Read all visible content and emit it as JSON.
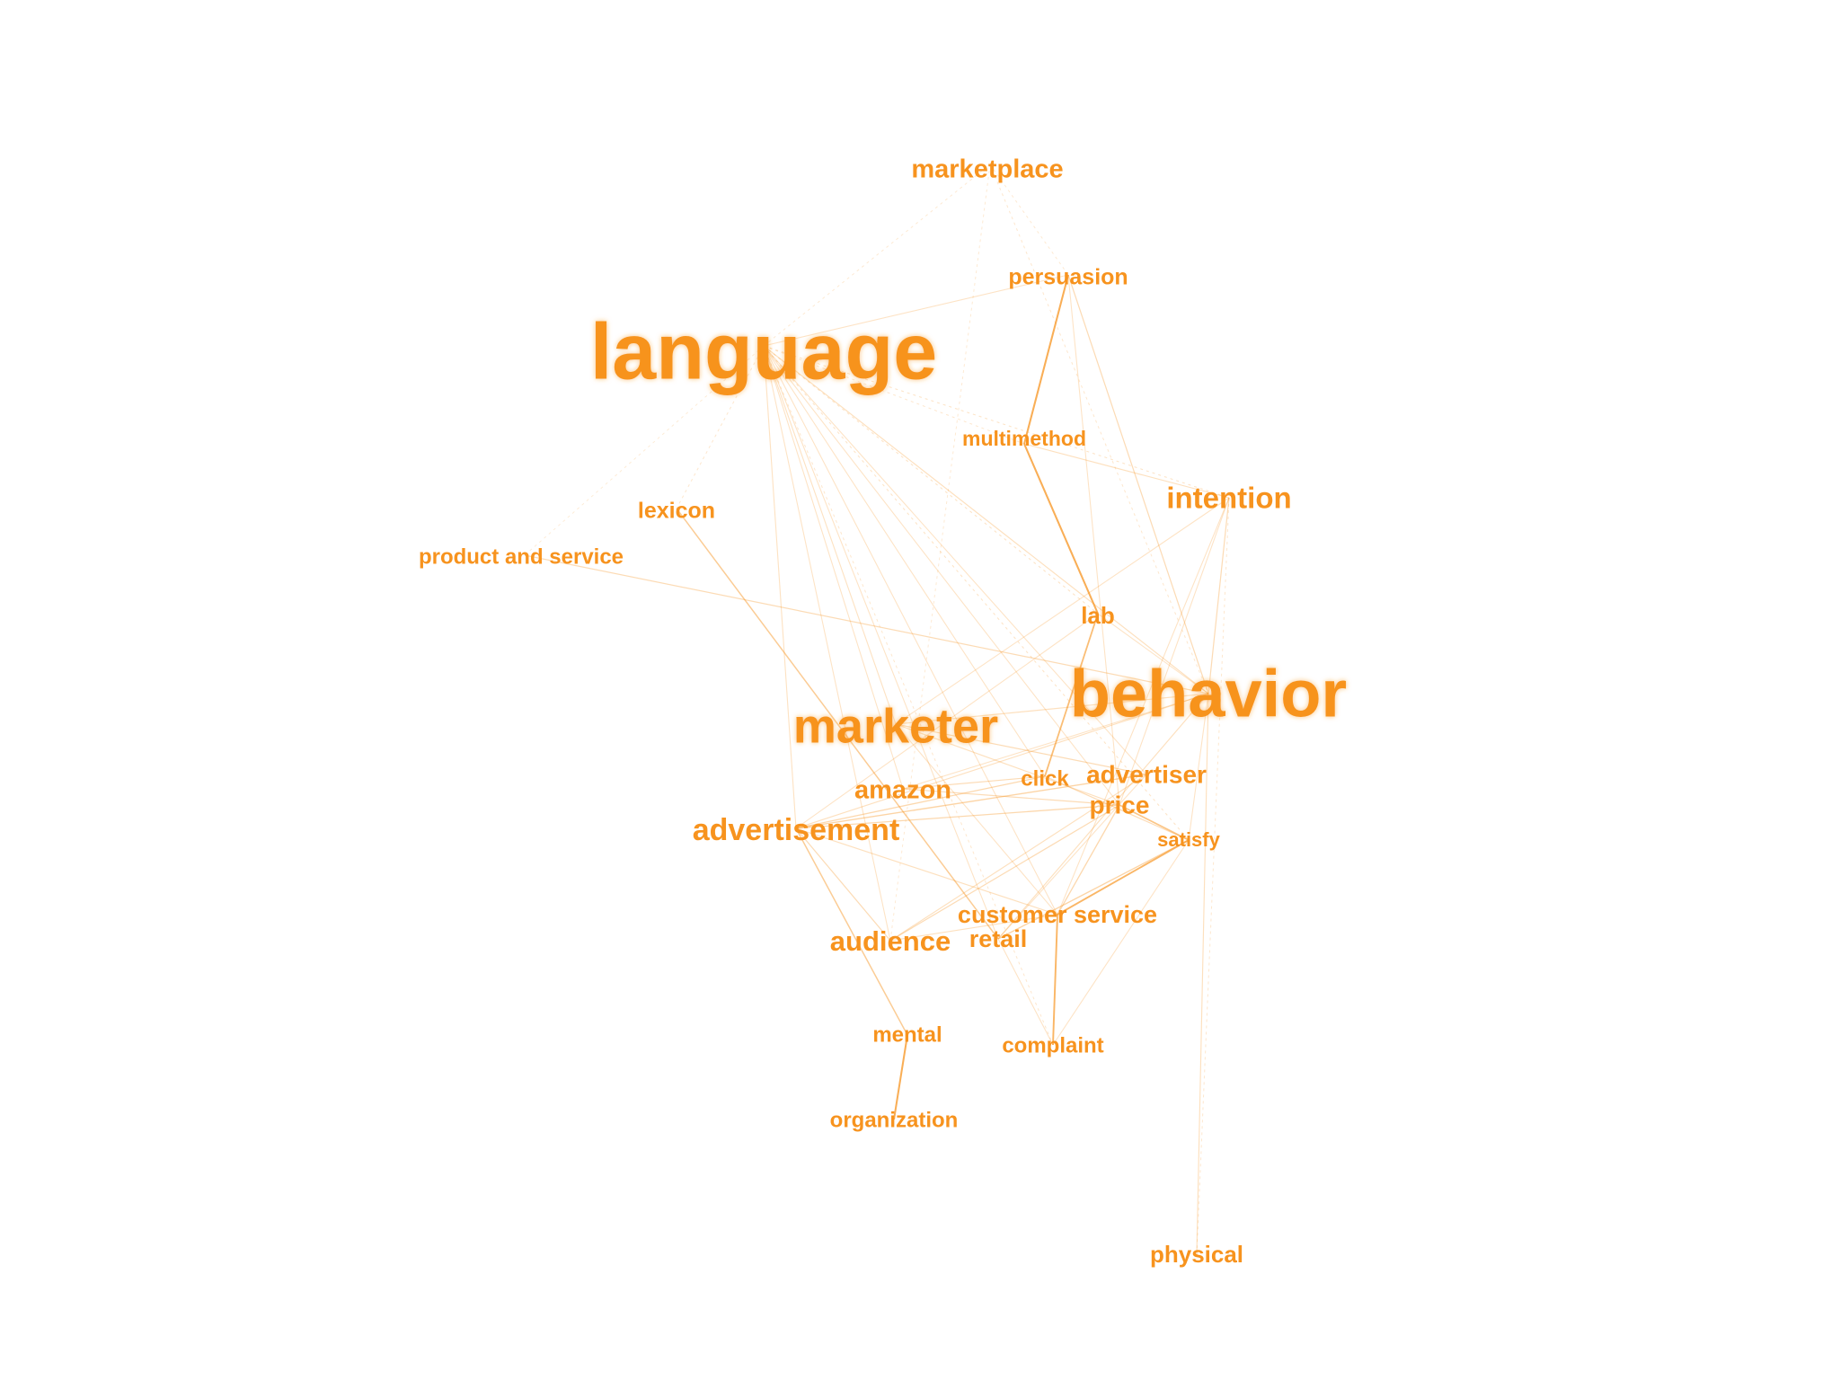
{
  "accent_color": "#f7931e",
  "nodes": [
    {
      "id": "marketplace",
      "label": "marketplace",
      "weight": 2
    },
    {
      "id": "persuasion",
      "label": "persuasion",
      "weight": 1.5
    },
    {
      "id": "language",
      "label": "language",
      "weight": 10
    },
    {
      "id": "multimethod",
      "label": "multimethod",
      "weight": 1.3
    },
    {
      "id": "intention",
      "label": "intention",
      "weight": 2.3
    },
    {
      "id": "lexicon",
      "label": "lexicon",
      "weight": 1.5
    },
    {
      "id": "product_and_service",
      "label": "product and service",
      "weight": 1.5
    },
    {
      "id": "lab",
      "label": "lab",
      "weight": 1.6
    },
    {
      "id": "behavior",
      "label": "behavior",
      "weight": 8
    },
    {
      "id": "marketer",
      "label": "marketer",
      "weight": 5
    },
    {
      "id": "click",
      "label": "click",
      "weight": 1.5
    },
    {
      "id": "advertiser",
      "label": "advertiser",
      "weight": 2
    },
    {
      "id": "amazon",
      "label": "amazon",
      "weight": 2
    },
    {
      "id": "price",
      "label": "price",
      "weight": 2
    },
    {
      "id": "advertisement",
      "label": "advertisement",
      "weight": 2.6
    },
    {
      "id": "satisfy",
      "label": "satisfy",
      "weight": 1.3
    },
    {
      "id": "customer_service",
      "label": "customer service",
      "weight": 1.8
    },
    {
      "id": "retail",
      "label": "retail",
      "weight": 1.8
    },
    {
      "id": "audience",
      "label": "audience",
      "weight": 2.2
    },
    {
      "id": "mental",
      "label": "mental",
      "weight": 1.4
    },
    {
      "id": "complaint",
      "label": "complaint",
      "weight": 1.4
    },
    {
      "id": "organization",
      "label": "organization",
      "weight": 1.4
    },
    {
      "id": "physical",
      "label": "physical",
      "weight": 1.5
    }
  ],
  "edges": [
    [
      "language",
      "marketplace",
      0.12
    ],
    [
      "language",
      "persuasion",
      0.2
    ],
    [
      "language",
      "multimethod",
      0.15
    ],
    [
      "language",
      "intention",
      0.18
    ],
    [
      "language",
      "lexicon",
      0.15
    ],
    [
      "language",
      "product_and_service",
      0.1
    ],
    [
      "language",
      "lab",
      0.18
    ],
    [
      "language",
      "behavior",
      0.25
    ],
    [
      "language",
      "marketer",
      0.22
    ],
    [
      "language",
      "click",
      0.2
    ],
    [
      "language",
      "advertiser",
      0.2
    ],
    [
      "language",
      "amazon",
      0.2
    ],
    [
      "language",
      "price",
      0.2
    ],
    [
      "language",
      "advertisement",
      0.22
    ],
    [
      "language",
      "satisfy",
      0.18
    ],
    [
      "language",
      "customer_service",
      0.2
    ],
    [
      "language",
      "retail",
      0.2
    ],
    [
      "language",
      "audience",
      0.2
    ],
    [
      "language",
      "complaint",
      0.15
    ],
    [
      "marketplace",
      "persuasion",
      0.12
    ],
    [
      "marketplace",
      "behavior",
      0.15
    ],
    [
      "marketplace",
      "audience",
      0.12
    ],
    [
      "persuasion",
      "multimethod",
      0.9
    ],
    [
      "persuasion",
      "behavior",
      0.3
    ],
    [
      "persuasion",
      "price",
      0.2
    ],
    [
      "multimethod",
      "lab",
      0.9
    ],
    [
      "multimethod",
      "intention",
      0.25
    ],
    [
      "intention",
      "behavior",
      0.3
    ],
    [
      "intention",
      "marketer",
      0.2
    ],
    [
      "intention",
      "price",
      0.2
    ],
    [
      "intention",
      "customer_service",
      0.2
    ],
    [
      "intention",
      "physical",
      0.15
    ],
    [
      "lexicon",
      "retail",
      0.5
    ],
    [
      "product_and_service",
      "behavior",
      0.3
    ],
    [
      "lab",
      "click",
      0.7
    ],
    [
      "lab",
      "behavior",
      0.2
    ],
    [
      "lab",
      "advertisement",
      0.2
    ],
    [
      "behavior",
      "marketer",
      0.25
    ],
    [
      "behavior",
      "advertisement",
      0.25
    ],
    [
      "behavior",
      "amazon",
      0.2
    ],
    [
      "behavior",
      "retail",
      0.25
    ],
    [
      "behavior",
      "physical",
      0.25
    ],
    [
      "behavior",
      "satisfy",
      0.2
    ],
    [
      "marketer",
      "advertiser",
      0.3
    ],
    [
      "marketer",
      "price",
      0.25
    ],
    [
      "marketer",
      "customer_service",
      0.2
    ],
    [
      "amazon",
      "price",
      0.3
    ],
    [
      "amazon",
      "click",
      0.3
    ],
    [
      "advertisement",
      "advertiser",
      0.4
    ],
    [
      "advertisement",
      "price",
      0.35
    ],
    [
      "advertisement",
      "click",
      0.35
    ],
    [
      "advertisement",
      "mental",
      0.5
    ],
    [
      "advertisement",
      "customer_service",
      0.25
    ],
    [
      "advertisement",
      "audience",
      0.3
    ],
    [
      "price",
      "satisfy",
      0.6
    ],
    [
      "price",
      "customer_service",
      0.35
    ],
    [
      "price",
      "audience",
      0.3
    ],
    [
      "satisfy",
      "customer_service",
      0.8
    ],
    [
      "satisfy",
      "retail",
      0.4
    ],
    [
      "satisfy",
      "click",
      0.3
    ],
    [
      "satisfy",
      "complaint",
      0.2
    ],
    [
      "customer_service",
      "complaint",
      0.8
    ],
    [
      "retail",
      "complaint",
      0.2
    ],
    [
      "audience",
      "customer_service",
      0.25
    ],
    [
      "mental",
      "organization",
      0.9
    ],
    [
      "advertiser",
      "retail",
      0.2
    ],
    [
      "advertiser",
      "audience",
      0.25
    ]
  ]
}
